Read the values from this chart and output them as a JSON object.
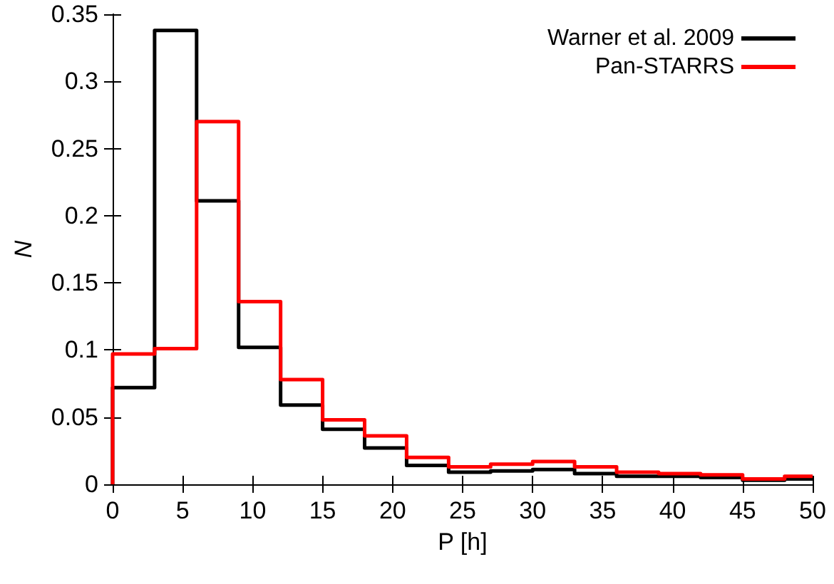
{
  "chart_data": {
    "type": "histogram",
    "xlabel": "P [h]",
    "ylabel": "N",
    "bins": [
      0,
      3,
      6,
      9,
      12,
      15,
      18,
      21,
      24,
      27,
      30,
      33,
      36,
      39,
      42,
      45,
      48,
      50
    ],
    "series": [
      {
        "name": "Warner et al. 2009",
        "color": "#000000",
        "values": [
          0.072,
          0.338,
          0.211,
          0.102,
          0.059,
          0.041,
          0.027,
          0.014,
          0.009,
          0.01,
          0.011,
          0.008,
          0.006,
          0.006,
          0.005,
          0.003,
          0.004
        ]
      },
      {
        "name": "Pan-STARRS",
        "color": "#ff0000",
        "values": [
          0.097,
          0.101,
          0.27,
          0.136,
          0.078,
          0.048,
          0.036,
          0.02,
          0.013,
          0.015,
          0.017,
          0.013,
          0.009,
          0.008,
          0.007,
          0.004,
          0.006
        ]
      }
    ],
    "xlim": [
      0,
      50
    ],
    "xticks": [
      0,
      5,
      10,
      15,
      20,
      25,
      30,
      35,
      40,
      45,
      50
    ],
    "ylim": [
      0,
      0.35
    ],
    "yticks": [
      0,
      0.05,
      0.1,
      0.15,
      0.2,
      0.25,
      0.3,
      0.35
    ],
    "grid": false,
    "legend": "top right",
    "line_style": "solid"
  }
}
